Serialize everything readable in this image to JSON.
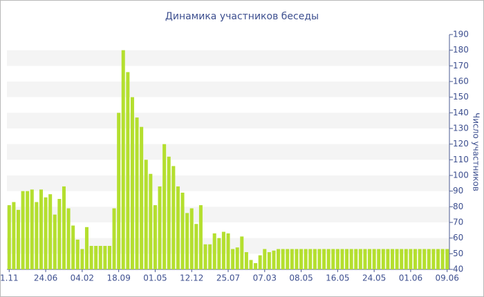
{
  "chart_data": {
    "type": "bar",
    "title": "Динамика участников беседы",
    "y_axis_label": "Число участников",
    "categories": [
      "1.11",
      null,
      null,
      null,
      null,
      null,
      null,
      null,
      "24.06",
      null,
      null,
      null,
      null,
      null,
      null,
      null,
      "04.02",
      null,
      null,
      null,
      null,
      null,
      null,
      null,
      "18.09",
      null,
      null,
      null,
      null,
      null,
      null,
      null,
      "01.05",
      null,
      null,
      null,
      null,
      null,
      null,
      null,
      "12.12",
      null,
      null,
      null,
      null,
      null,
      null,
      null,
      "25.07",
      null,
      null,
      null,
      null,
      null,
      null,
      null,
      "07.03",
      null,
      null,
      null,
      null,
      null,
      null,
      null,
      "08.05",
      null,
      null,
      null,
      null,
      null,
      null,
      null,
      "16.05",
      null,
      null,
      null,
      null,
      null,
      null,
      null,
      "24.05",
      null,
      null,
      null,
      null,
      null,
      null,
      null,
      "01.06",
      null,
      null,
      null,
      null,
      null,
      null,
      null,
      "09.06"
    ],
    "values": [
      81,
      83,
      78,
      90,
      90,
      91,
      83,
      91,
      86,
      88,
      75,
      85,
      93,
      79,
      68,
      59,
      53,
      67,
      55,
      55,
      55,
      55,
      55,
      79,
      140,
      180,
      166,
      150,
      137,
      131,
      110,
      101,
      81,
      93,
      120,
      112,
      106,
      93,
      89,
      76,
      79,
      69,
      81,
      56,
      56,
      63,
      60,
      64,
      63,
      53,
      54,
      61,
      51,
      46,
      44,
      49,
      53,
      51,
      52,
      53,
      53,
      53,
      53,
      53,
      53,
      53,
      53,
      53,
      53,
      53,
      53,
      53,
      53,
      53,
      53,
      53,
      53,
      53,
      53,
      53,
      53,
      53,
      53,
      53,
      53,
      53,
      53,
      53,
      53,
      53,
      53,
      53,
      53,
      53,
      53,
      53,
      53
    ],
    "color": "#b4df2f",
    "ylim": [
      40,
      190
    ],
    "yticks": [
      40,
      50,
      60,
      70,
      80,
      90,
      100,
      110,
      120,
      130,
      140,
      150,
      160,
      170,
      180,
      190
    ],
    "grid": true
  }
}
